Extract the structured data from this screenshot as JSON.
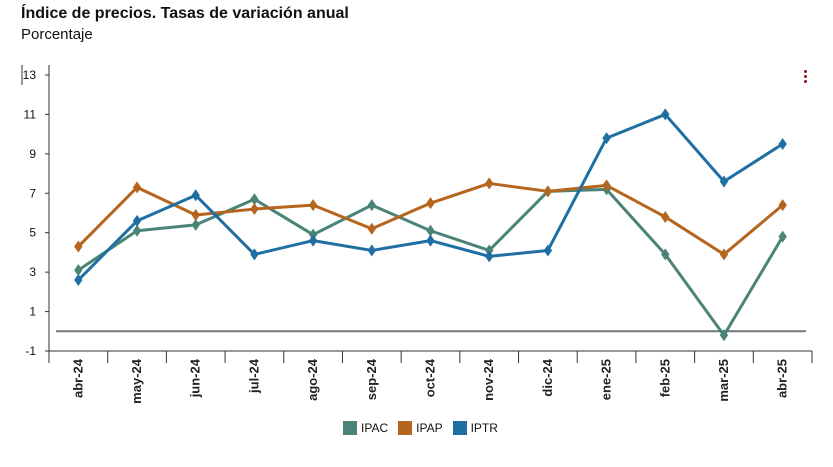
{
  "title": "Índice de precios. Tasas de variación anual",
  "subtitle": "Porcentaje",
  "menu_icon": "more-vertical-icon",
  "chart_data": {
    "type": "line",
    "categories": [
      "abr-24",
      "may-24",
      "jun-24",
      "jul-24",
      "ago-24",
      "sep-24",
      "oct-24",
      "nov-24",
      "dic-24",
      "ene-25",
      "feb-25",
      "mar-25",
      "abr-25"
    ],
    "series": [
      {
        "name": "IPAC",
        "color": "#4a8478",
        "values": [
          3.1,
          5.1,
          5.4,
          6.7,
          4.9,
          6.4,
          5.1,
          4.1,
          7.1,
          7.2,
          3.9,
          -0.2,
          4.8
        ]
      },
      {
        "name": "IPAP",
        "color": "#b5651d",
        "values": [
          4.3,
          7.3,
          5.9,
          6.2,
          6.4,
          5.2,
          6.5,
          7.5,
          7.1,
          7.4,
          5.8,
          3.9,
          6.4
        ]
      },
      {
        "name": "IPTR",
        "color": "#1f6fa3",
        "values": [
          2.6,
          5.6,
          6.9,
          3.9,
          4.6,
          4.1,
          4.6,
          3.8,
          4.1,
          9.8,
          11.0,
          7.6,
          9.5
        ]
      }
    ],
    "y_ticks": [
      "13",
      "11",
      "9",
      "7",
      "5",
      "3",
      "1",
      "-1"
    ],
    "ylim": [
      -1,
      13
    ],
    "reference_line": 0,
    "grid": false,
    "legend_position": "bottom-center"
  }
}
